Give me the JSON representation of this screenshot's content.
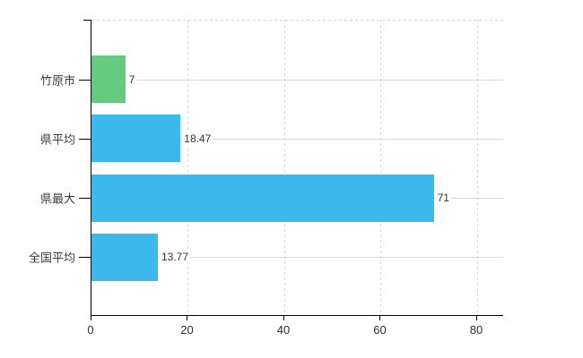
{
  "chart_data": {
    "type": "bar",
    "orientation": "horizontal",
    "title": "",
    "xlabel": "",
    "ylabel": "",
    "categories": [
      "竹原市",
      "県平均",
      "県最大",
      "全国平均"
    ],
    "values": [
      7,
      18.47,
      71,
      13.77
    ],
    "value_labels": [
      "7",
      "18.47",
      "71",
      "13.77"
    ],
    "bar_colors": [
      "#68c980",
      "#3db8ec",
      "#3db8ec",
      "#3db8ec"
    ],
    "x_ticks": [
      0,
      20,
      40,
      60,
      80
    ],
    "x_tick_labels": [
      "0",
      "20",
      "40",
      "60",
      "80"
    ],
    "xlim": [
      0,
      85.4
    ],
    "grid": true,
    "legend": false,
    "background": "#ffffff",
    "axis_color": "#000000",
    "gridline_color": "#d9d9d9",
    "text_color": "#3c3c3c"
  }
}
